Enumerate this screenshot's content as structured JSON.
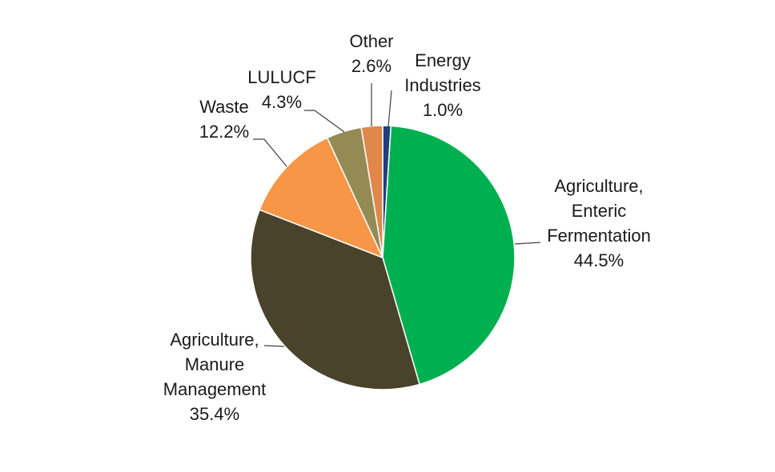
{
  "chart_data": {
    "type": "pie",
    "title": "",
    "slices": [
      {
        "label_lines": [
          "Energy",
          "Industries"
        ],
        "value": 1.0,
        "value_label": "1.0%",
        "color": "#1f3f7f"
      },
      {
        "label_lines": [
          "Agriculture,",
          "Enteric",
          "Fermentation"
        ],
        "value": 44.5,
        "value_label": "44.5%",
        "color": "#00b050"
      },
      {
        "label_lines": [
          "Agriculture,",
          "Manure",
          "Management"
        ],
        "value": 35.4,
        "value_label": "35.4%",
        "color": "#4a432b"
      },
      {
        "label_lines": [
          "Waste"
        ],
        "value": 12.2,
        "value_label": "12.2%",
        "color": "#f79646"
      },
      {
        "label_lines": [
          "LULUCF"
        ],
        "value": 4.3,
        "value_label": "4.3%",
        "color": "#948a54"
      },
      {
        "label_lines": [
          "Other"
        ],
        "value": 2.6,
        "value_label": "2.6%",
        "color": "#e0884a"
      }
    ],
    "start_angle_deg": 0,
    "direction": "clockwise",
    "legend": "none"
  }
}
